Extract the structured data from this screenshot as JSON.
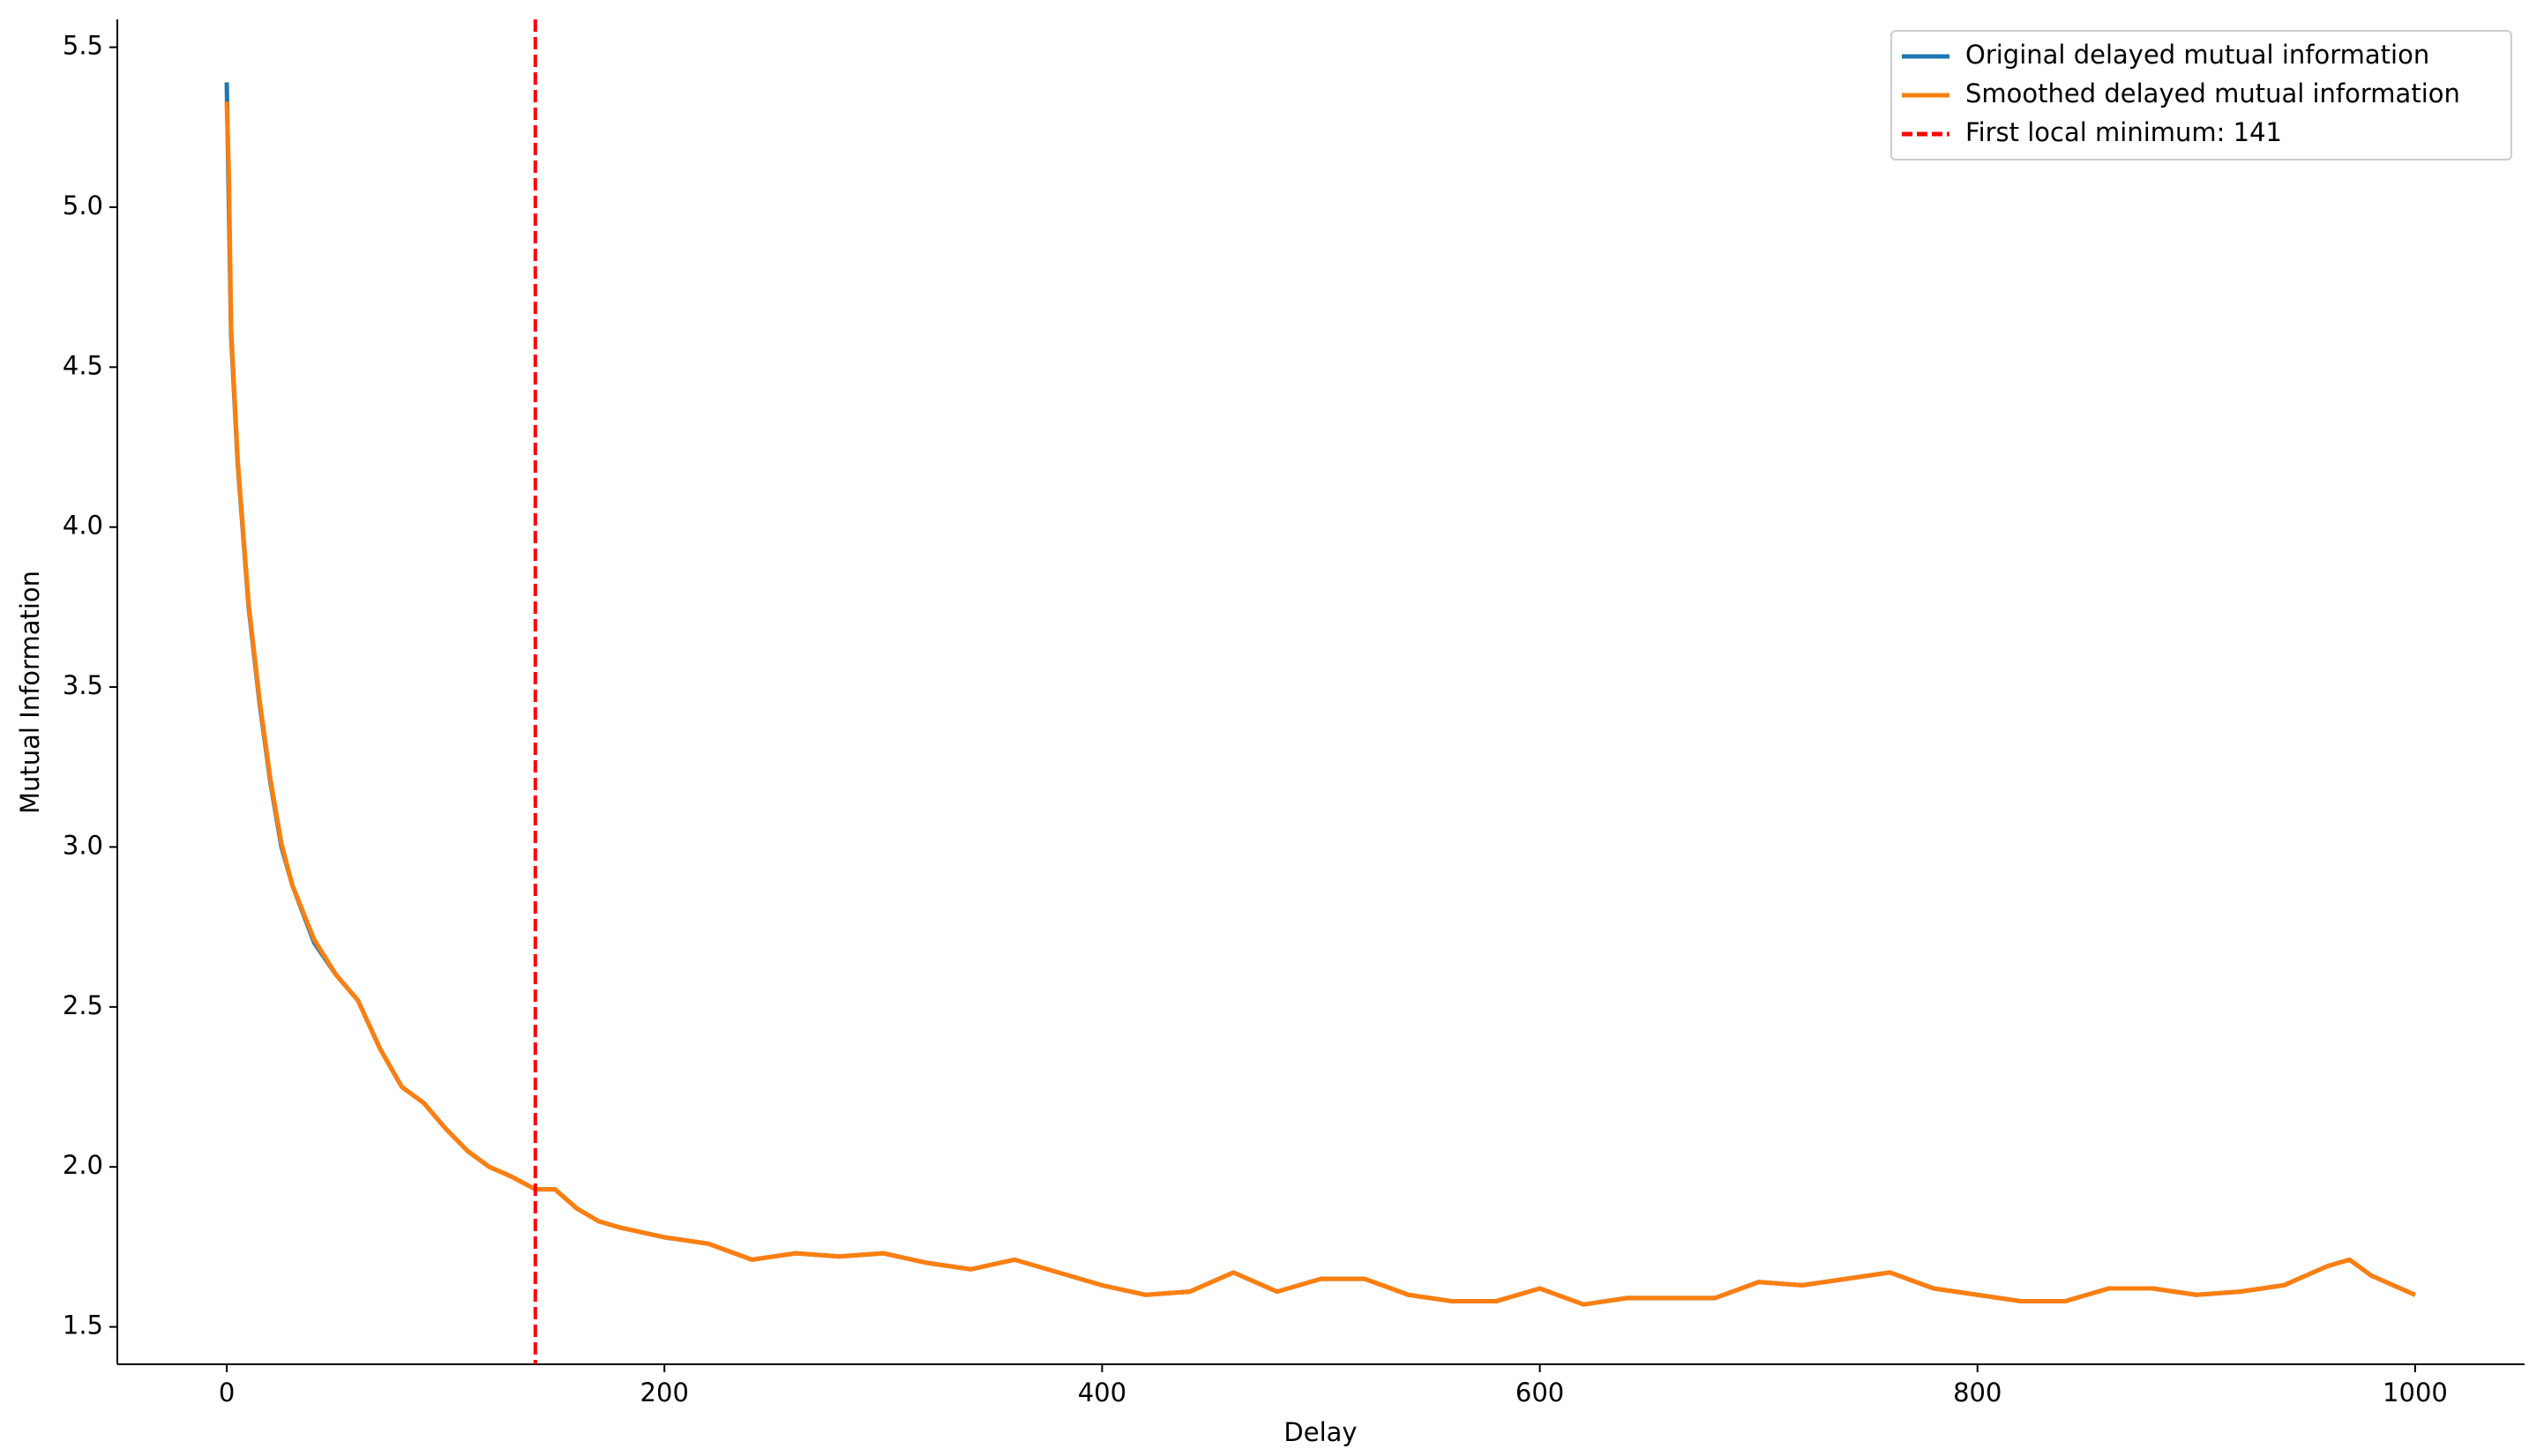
{
  "chart_data": {
    "type": "line",
    "xlabel": "Delay",
    "ylabel": "Mutual Information",
    "x": [
      0,
      1,
      2,
      5,
      10,
      15,
      20,
      25,
      30,
      40,
      50,
      60,
      70,
      80,
      90,
      100,
      110,
      120,
      130,
      141,
      150,
      160,
      170,
      180,
      200,
      220,
      240,
      260,
      280,
      300,
      320,
      340,
      360,
      380,
      400,
      420,
      440,
      460,
      480,
      500,
      520,
      540,
      560,
      580,
      600,
      620,
      640,
      660,
      680,
      700,
      720,
      740,
      760,
      780,
      800,
      820,
      840,
      860,
      880,
      900,
      920,
      940,
      960,
      970,
      980,
      1000
    ],
    "series": [
      {
        "name": "Original delayed mutual information",
        "color": "#1f77b4",
        "values": [
          5.39,
          5.0,
          4.6,
          4.2,
          3.75,
          3.45,
          3.2,
          3.0,
          2.88,
          2.7,
          2.6,
          2.52,
          2.37,
          2.25,
          2.2,
          2.12,
          2.05,
          2.0,
          1.97,
          1.93,
          1.93,
          1.87,
          1.83,
          1.81,
          1.78,
          1.76,
          1.71,
          1.73,
          1.72,
          1.73,
          1.7,
          1.68,
          1.71,
          1.67,
          1.63,
          1.6,
          1.61,
          1.67,
          1.61,
          1.65,
          1.65,
          1.6,
          1.58,
          1.58,
          1.62,
          1.57,
          1.59,
          1.59,
          1.59,
          1.64,
          1.63,
          1.65,
          1.67,
          1.62,
          1.6,
          1.58,
          1.58,
          1.62,
          1.62,
          1.6,
          1.61,
          1.63,
          1.69,
          1.71,
          1.66,
          1.6
        ]
      },
      {
        "name": "Smoothed delayed mutual information",
        "color": "#ff7f0e",
        "values": [
          5.33,
          5.1,
          4.62,
          4.21,
          3.76,
          3.46,
          3.21,
          3.01,
          2.88,
          2.71,
          2.6,
          2.52,
          2.37,
          2.25,
          2.2,
          2.12,
          2.05,
          2.0,
          1.97,
          1.93,
          1.93,
          1.87,
          1.83,
          1.81,
          1.78,
          1.76,
          1.71,
          1.73,
          1.72,
          1.73,
          1.7,
          1.68,
          1.71,
          1.67,
          1.63,
          1.6,
          1.61,
          1.67,
          1.61,
          1.65,
          1.65,
          1.6,
          1.58,
          1.58,
          1.62,
          1.57,
          1.59,
          1.59,
          1.59,
          1.64,
          1.63,
          1.65,
          1.67,
          1.62,
          1.6,
          1.58,
          1.58,
          1.62,
          1.62,
          1.6,
          1.61,
          1.63,
          1.69,
          1.71,
          1.66,
          1.6
        ]
      }
    ],
    "vline": {
      "x": 141,
      "label": "First local minimum: 141",
      "color": "#ff0000"
    },
    "xlim": [
      -50,
      1050
    ],
    "xticks": [
      0,
      200,
      400,
      600,
      800,
      1000
    ],
    "ylim": [
      1.383,
      5.587
    ],
    "yticks": [
      1.5,
      {
        "value": 2.0,
        "label": "2.0"
      },
      2.5,
      {
        "value": 3.0,
        "label": "3.0"
      },
      3.5,
      {
        "value": 4.0,
        "label": "4.0"
      },
      4.5,
      {
        "value": 5.0,
        "label": "5.0"
      },
      5.5
    ],
    "legend": "upper right"
  }
}
